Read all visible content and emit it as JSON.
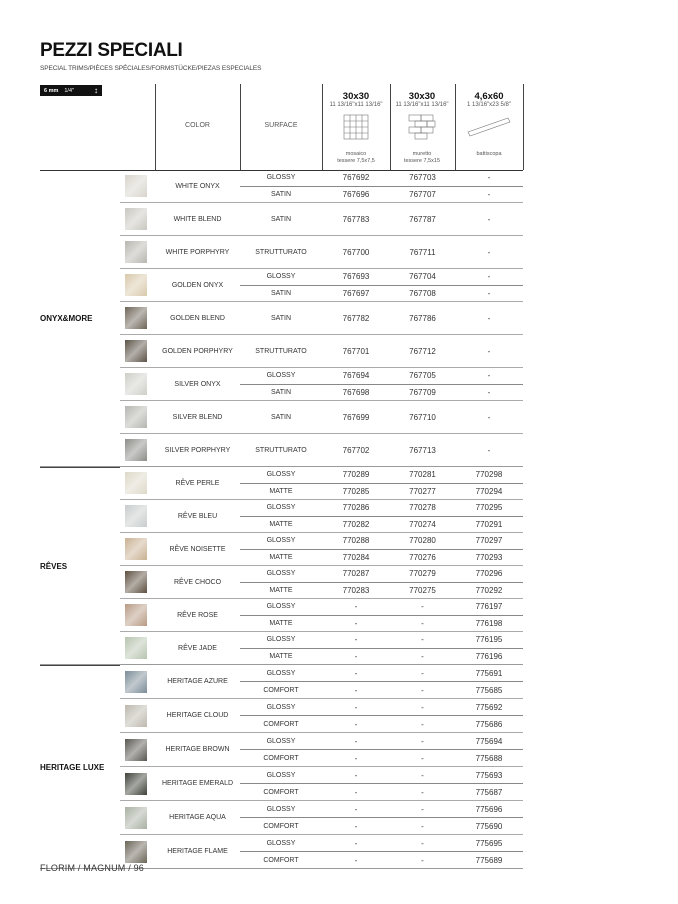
{
  "title": "PEZZI SPECIALI",
  "subtitle": "SPECIAL TRIMS/PIÈCES SPÉCIALES/FORMSTÜCKE/PIEZAS ESPECIALES",
  "thickness": {
    "mm": "6 mm",
    "inch": "1/4\""
  },
  "headers": {
    "color": "COLOR",
    "surface": "SURFACE"
  },
  "formats": [
    {
      "size": "30x30",
      "inch": "11 13/16\"x11 13/16\"",
      "name": "mosaico",
      "note": "tessere 7,5x7,5",
      "icon": "mosaic-grid-icon"
    },
    {
      "size": "30x30",
      "inch": "11 13/16\"x11 13/16\"",
      "name": "muretto",
      "note": "tessere 7,5x15",
      "icon": "brick-pattern-icon"
    },
    {
      "size": "4,6x60",
      "inch": "1 13/16\"x23 5/8\"",
      "name": "battiscopa",
      "note": "",
      "icon": "skirting-board-icon"
    }
  ],
  "groups": [
    {
      "name": "ONYX&MORE",
      "colors": [
        {
          "name": "WHITE ONYX",
          "swatch": "#d8d4cc",
          "finishes": [
            {
              "surface": "GLOSSY",
              "codes": [
                "767692",
                "767703",
                "-"
              ]
            },
            {
              "surface": "SATIN",
              "codes": [
                "767696",
                "767707",
                "-"
              ]
            }
          ]
        },
        {
          "name": "WHITE BLEND",
          "swatch": "#c9c7c0",
          "finishes": [
            {
              "surface": "SATIN",
              "codes": [
                "767783",
                "767787",
                "-"
              ]
            }
          ]
        },
        {
          "name": "WHITE PORPHYRY",
          "swatch": "#b9b6ae",
          "finishes": [
            {
              "surface": "STRUTTURATO",
              "codes": [
                "767700",
                "767711",
                "-"
              ]
            }
          ]
        },
        {
          "name": "GOLDEN ONYX",
          "swatch": "#d9c9ac",
          "finishes": [
            {
              "surface": "GLOSSY",
              "codes": [
                "767693",
                "767704",
                "-"
              ]
            },
            {
              "surface": "SATIN",
              "codes": [
                "767697",
                "767708",
                "-"
              ]
            }
          ]
        },
        {
          "name": "GOLDEN BLEND",
          "swatch": "#6e6558",
          "finishes": [
            {
              "surface": "SATIN",
              "codes": [
                "767782",
                "767786",
                "-"
              ]
            }
          ]
        },
        {
          "name": "GOLDEN PORPHYRY",
          "swatch": "#5c5448",
          "finishes": [
            {
              "surface": "STRUTTURATO",
              "codes": [
                "767701",
                "767712",
                "-"
              ]
            }
          ]
        },
        {
          "name": "SILVER ONYX",
          "swatch": "#cfcfc9",
          "finishes": [
            {
              "surface": "GLOSSY",
              "codes": [
                "767694",
                "767705",
                "-"
              ]
            },
            {
              "surface": "SATIN",
              "codes": [
                "767698",
                "767709",
                "-"
              ]
            }
          ]
        },
        {
          "name": "SILVER BLEND",
          "swatch": "#b5b5b0",
          "finishes": [
            {
              "surface": "SATIN",
              "codes": [
                "767699",
                "767710",
                "-"
              ]
            }
          ]
        },
        {
          "name": "SILVER PORPHYRY",
          "swatch": "#8c8c88",
          "finishes": [
            {
              "surface": "STRUTTURATO",
              "codes": [
                "767702",
                "767713",
                "-"
              ]
            }
          ]
        }
      ]
    },
    {
      "name": "RÊVES",
      "colors": [
        {
          "name": "RÊVE PERLE",
          "swatch": "#ddd8c8",
          "finishes": [
            {
              "surface": "GLOSSY",
              "codes": [
                "770289",
                "770281",
                "770298"
              ]
            },
            {
              "surface": "MATTE",
              "codes": [
                "770285",
                "770277",
                "770294"
              ]
            }
          ]
        },
        {
          "name": "RÊVE BLEU",
          "swatch": "#c8cccc",
          "finishes": [
            {
              "surface": "GLOSSY",
              "codes": [
                "770286",
                "770278",
                "770295"
              ]
            },
            {
              "surface": "MATTE",
              "codes": [
                "770282",
                "770274",
                "770291"
              ]
            }
          ]
        },
        {
          "name": "RÊVE NOISETTE",
          "swatch": "#c9b193",
          "finishes": [
            {
              "surface": "GLOSSY",
              "codes": [
                "770288",
                "770280",
                "770297"
              ]
            },
            {
              "surface": "MATTE",
              "codes": [
                "770284",
                "770276",
                "770293"
              ]
            }
          ]
        },
        {
          "name": "RÊVE CHOCO",
          "swatch": "#5e5040",
          "finishes": [
            {
              "surface": "GLOSSY",
              "codes": [
                "770287",
                "770279",
                "770296"
              ]
            },
            {
              "surface": "MATTE",
              "codes": [
                "770283",
                "770275",
                "770292"
              ]
            }
          ]
        },
        {
          "name": "RÊVE ROSE",
          "swatch": "#b89a84",
          "finishes": [
            {
              "surface": "GLOSSY",
              "codes": [
                "-",
                "-",
                "776197"
              ]
            },
            {
              "surface": "MATTE",
              "codes": [
                "-",
                "-",
                "776198"
              ]
            }
          ]
        },
        {
          "name": "RÊVE JADE",
          "swatch": "#b7c4b0",
          "finishes": [
            {
              "surface": "GLOSSY",
              "codes": [
                "-",
                "-",
                "776195"
              ]
            },
            {
              "surface": "MATTE",
              "codes": [
                "-",
                "-",
                "776196"
              ]
            }
          ]
        }
      ]
    },
    {
      "name": "HERITAGE LUXE",
      "colors": [
        {
          "name": "HERITAGE AZURE",
          "swatch": "#7c8c98",
          "finishes": [
            {
              "surface": "GLOSSY",
              "codes": [
                "-",
                "-",
                "775691"
              ]
            },
            {
              "surface": "COMFORT",
              "codes": [
                "-",
                "-",
                "775685"
              ]
            }
          ]
        },
        {
          "name": "HERITAGE CLOUD",
          "swatch": "#bdb8ae",
          "finishes": [
            {
              "surface": "GLOSSY",
              "codes": [
                "-",
                "-",
                "775692"
              ]
            },
            {
              "surface": "COMFORT",
              "codes": [
                "-",
                "-",
                "775686"
              ]
            }
          ]
        },
        {
          "name": "HERITAGE BROWN",
          "swatch": "#5a5750",
          "finishes": [
            {
              "surface": "GLOSSY",
              "codes": [
                "-",
                "-",
                "775694"
              ]
            },
            {
              "surface": "COMFORT",
              "codes": [
                "-",
                "-",
                "775688"
              ]
            }
          ]
        },
        {
          "name": "HERITAGE EMERALD",
          "swatch": "#3e4238",
          "finishes": [
            {
              "surface": "GLOSSY",
              "codes": [
                "-",
                "-",
                "775693"
              ]
            },
            {
              "surface": "COMFORT",
              "codes": [
                "-",
                "-",
                "775687"
              ]
            }
          ]
        },
        {
          "name": "HERITAGE AQUA",
          "swatch": "#a9b0a3",
          "finishes": [
            {
              "surface": "GLOSSY",
              "codes": [
                "-",
                "-",
                "775696"
              ]
            },
            {
              "surface": "COMFORT",
              "codes": [
                "-",
                "-",
                "775690"
              ]
            }
          ]
        },
        {
          "name": "HERITAGE FLAME",
          "swatch": "#6b6558",
          "finishes": [
            {
              "surface": "GLOSSY",
              "codes": [
                "-",
                "-",
                "775695"
              ]
            },
            {
              "surface": "COMFORT",
              "codes": [
                "-",
                "-",
                "775689"
              ]
            }
          ]
        }
      ]
    }
  ],
  "footer": "FLORIM / MAGNUM / 96"
}
